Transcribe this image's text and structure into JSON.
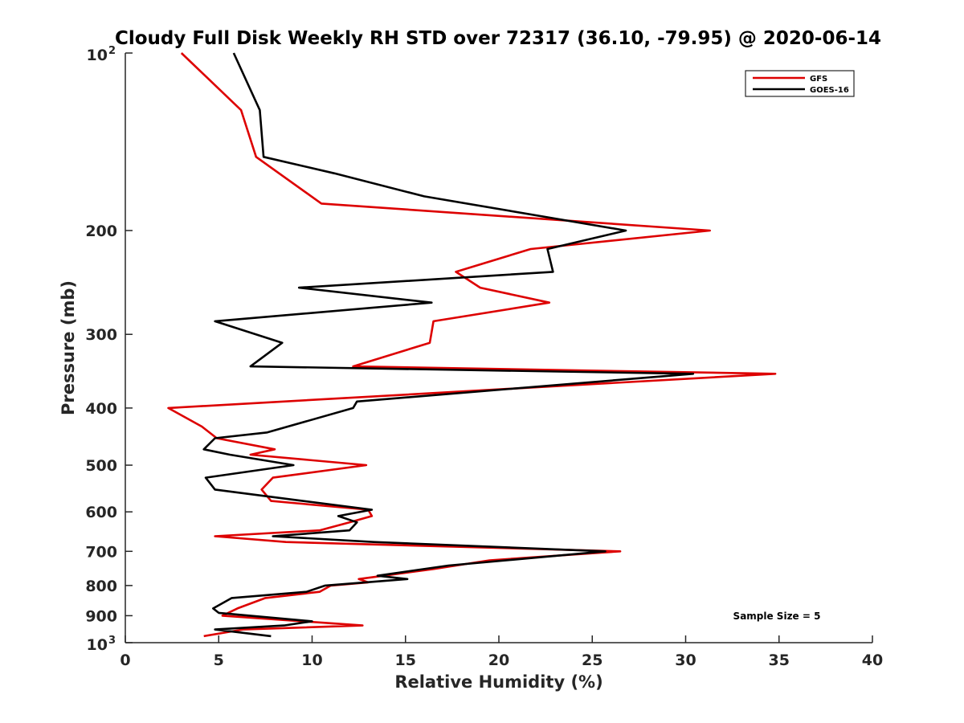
{
  "chart_data": {
    "type": "line",
    "title": "Cloudy Full Disk Weekly RH STD over 72317 (36.10, -79.95) @ 2020-06-14",
    "xlabel": "Relative Humidity (%)",
    "ylabel": "Pressure (mb)",
    "xlim": [
      0,
      40
    ],
    "ylim": [
      100,
      1000
    ],
    "y_scale": "log",
    "y_reversed": true,
    "grid": false,
    "legend_position": "top-right",
    "x_ticks": [
      "0",
      "5",
      "10",
      "15",
      "20",
      "25",
      "30",
      "35",
      "40"
    ],
    "y_ticks": [
      {
        "value": 100,
        "base": "10",
        "exp": "2"
      },
      {
        "value": 200,
        "label": "200"
      },
      {
        "value": 300,
        "label": "300"
      },
      {
        "value": 400,
        "label": "400"
      },
      {
        "value": 500,
        "label": "500"
      },
      {
        "value": 600,
        "label": "600"
      },
      {
        "value": 700,
        "label": "700"
      },
      {
        "value": 800,
        "label": "800"
      },
      {
        "value": 900,
        "label": "900"
      },
      {
        "value": 1000,
        "base": "10",
        "exp": "3"
      }
    ],
    "annotation": "Sample Size = 5",
    "series": [
      {
        "name": "GFS",
        "color": "#dd0000",
        "points": [
          [
            3.0,
            100
          ],
          [
            6.2,
            125
          ],
          [
            7.0,
            150
          ],
          [
            10.5,
            180
          ],
          [
            31.3,
            200
          ],
          [
            21.7,
            215
          ],
          [
            17.7,
            235
          ],
          [
            19.0,
            250
          ],
          [
            22.7,
            265
          ],
          [
            16.5,
            285
          ],
          [
            16.3,
            310
          ],
          [
            12.2,
            340
          ],
          [
            34.8,
            350
          ],
          [
            2.3,
            400
          ],
          [
            4.1,
            430
          ],
          [
            4.9,
            450
          ],
          [
            8.0,
            470
          ],
          [
            6.7,
            480
          ],
          [
            12.9,
            500
          ],
          [
            7.9,
            525
          ],
          [
            7.3,
            550
          ],
          [
            7.8,
            575
          ],
          [
            13.0,
            595
          ],
          [
            13.2,
            610
          ],
          [
            12.0,
            625
          ],
          [
            10.4,
            645
          ],
          [
            4.8,
            660
          ],
          [
            8.6,
            675
          ],
          [
            26.5,
            700
          ],
          [
            19.5,
            725
          ],
          [
            16.5,
            750
          ],
          [
            12.5,
            780
          ],
          [
            13.0,
            790
          ],
          [
            11.0,
            800
          ],
          [
            10.4,
            820
          ],
          [
            7.5,
            840
          ],
          [
            6.0,
            875
          ],
          [
            5.2,
            900
          ],
          [
            9.5,
            920
          ],
          [
            12.7,
            935
          ],
          [
            6.3,
            950
          ],
          [
            4.2,
            975
          ]
        ]
      },
      {
        "name": "GOES-16",
        "color": "#000000",
        "points": [
          [
            5.8,
            100
          ],
          [
            7.2,
            125
          ],
          [
            7.4,
            150
          ],
          [
            11.2,
            160
          ],
          [
            16.0,
            175
          ],
          [
            26.8,
            200
          ],
          [
            22.6,
            215
          ],
          [
            22.9,
            235
          ],
          [
            9.3,
            250
          ],
          [
            16.4,
            265
          ],
          [
            4.8,
            285
          ],
          [
            8.4,
            310
          ],
          [
            6.7,
            340
          ],
          [
            30.4,
            350
          ],
          [
            12.4,
            390
          ],
          [
            12.2,
            400
          ],
          [
            7.6,
            440
          ],
          [
            4.8,
            450
          ],
          [
            4.2,
            470
          ],
          [
            5.6,
            480
          ],
          [
            9.0,
            500
          ],
          [
            4.3,
            525
          ],
          [
            4.8,
            550
          ],
          [
            9.5,
            575
          ],
          [
            13.2,
            595
          ],
          [
            11.4,
            610
          ],
          [
            12.4,
            625
          ],
          [
            12.0,
            645
          ],
          [
            7.9,
            660
          ],
          [
            13.3,
            675
          ],
          [
            25.7,
            700
          ],
          [
            17.3,
            740
          ],
          [
            13.5,
            770
          ],
          [
            15.1,
            780
          ],
          [
            10.7,
            800
          ],
          [
            9.7,
            820
          ],
          [
            5.7,
            840
          ],
          [
            4.7,
            875
          ],
          [
            5.0,
            890
          ],
          [
            10.0,
            920
          ],
          [
            8.5,
            935
          ],
          [
            4.8,
            950
          ],
          [
            7.8,
            975
          ]
        ]
      }
    ]
  }
}
